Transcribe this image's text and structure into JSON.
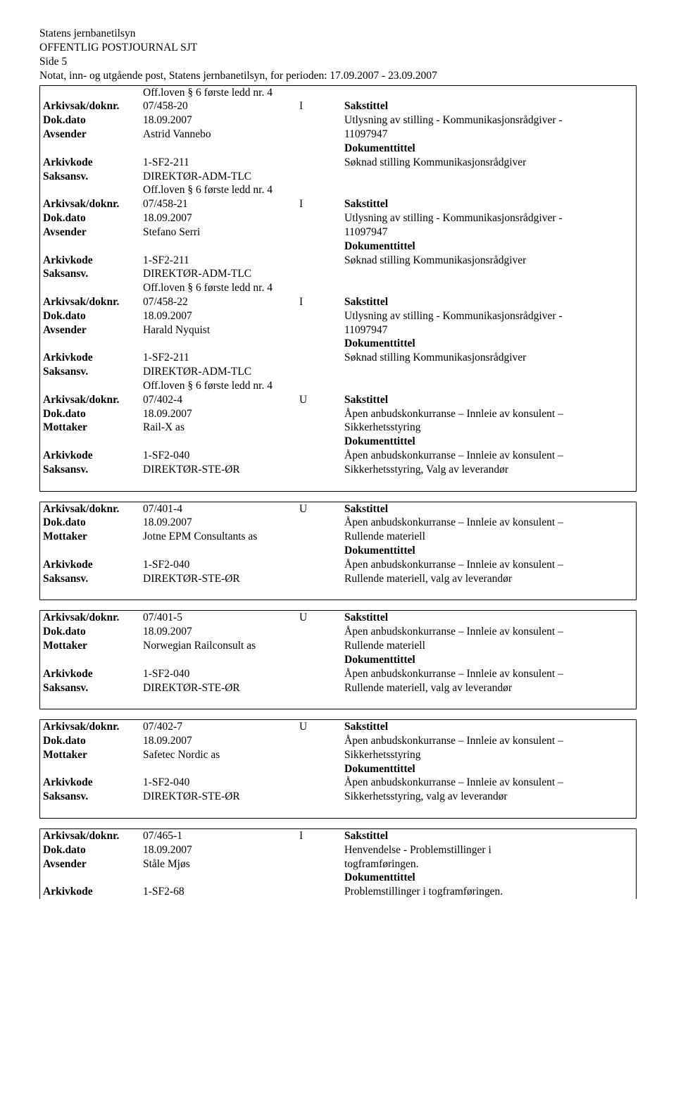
{
  "header": {
    "org": "Statens jernbanetilsyn",
    "title": "OFFENTLIG POSTJOURNAL SJT",
    "page": "Side 5",
    "subtitle": "Notat, inn- og utgående post, Statens jernbanetilsyn, for perioden: 17.09.2007 - 23.09.2007"
  },
  "labels": {
    "arkivsak": "Arkivsak/doknr.",
    "dokdato": "Dok.dato",
    "avsender": "Avsender",
    "mottaker": "Mottaker",
    "arkivkode": "Arkivkode",
    "saksansv": "Saksansv.",
    "sakstittel": "Sakstittel",
    "dokumenttittel": "Dokumenttittel"
  },
  "pre_off": "Off.loven § 6 første ledd nr. 4",
  "entries": [
    {
      "arkivsak": "07/458-20",
      "io": "I",
      "dokdato": "18.09.2007",
      "party_label": "Avsender",
      "party": "Astrid Vannebo",
      "arkivkode": "1-SF2-211",
      "saksansv": "DIREKTØR-ADM-TLC",
      "off": "Off.loven § 6 første ledd nr. 4",
      "sakstittel": [
        "Utlysning av stilling - Kommunikasjonsrådgiver -",
        "11097947"
      ],
      "doktittel": [
        "Søknad stilling Kommunikasjonsrådgiver"
      ]
    },
    {
      "arkivsak": "07/458-21",
      "io": "I",
      "dokdato": "18.09.2007",
      "party_label": "Avsender",
      "party": "Stefano Serri",
      "arkivkode": "1-SF2-211",
      "saksansv": "DIREKTØR-ADM-TLC",
      "off": "Off.loven § 6 første ledd nr. 4",
      "sakstittel": [
        "Utlysning av stilling - Kommunikasjonsrådgiver -",
        "11097947"
      ],
      "doktittel": [
        "Søknad stilling Kommunikasjonsrådgiver"
      ]
    },
    {
      "arkivsak": "07/458-22",
      "io": "I",
      "dokdato": "18.09.2007",
      "party_label": "Avsender",
      "party": "Harald Nyquist",
      "arkivkode": "1-SF2-211",
      "saksansv": "DIREKTØR-ADM-TLC",
      "off": "Off.loven § 6 første ledd nr. 4",
      "sakstittel": [
        "Utlysning av stilling - Kommunikasjonsrådgiver -",
        "11097947"
      ],
      "doktittel": [
        "Søknad stilling Kommunikasjonsrådgiver"
      ]
    },
    {
      "arkivsak": "07/402-4",
      "io": "U",
      "dokdato": "18.09.2007",
      "party_label": "Mottaker",
      "party": "Rail-X as",
      "arkivkode": "1-SF2-040",
      "saksansv": "DIREKTØR-STE-ØR",
      "sakstittel": [
        "Åpen anbudskonkurranse – Innleie av konsulent –",
        "Sikkerhetsstyring"
      ],
      "doktittel": [
        "Åpen anbudskonkurranse – Innleie av konsulent –",
        "Sikkerhetsstyring, Valg av leverandør"
      ]
    },
    {
      "arkivsak": "07/401-4",
      "io": "U",
      "dokdato": "18.09.2007",
      "party_label": "Mottaker",
      "party": "Jotne EPM Consultants as",
      "arkivkode": "1-SF2-040",
      "saksansv": "DIREKTØR-STE-ØR",
      "sakstittel": [
        "Åpen anbudskonkurranse – Innleie av konsulent –",
        "Rullende materiell"
      ],
      "doktittel": [
        "Åpen anbudskonkurranse – Innleie av konsulent –",
        "Rullende materiell, valg av leverandør"
      ]
    },
    {
      "arkivsak": "07/401-5",
      "io": "U",
      "dokdato": "18.09.2007",
      "party_label": "Mottaker",
      "party": "Norwegian Railconsult as",
      "arkivkode": "1-SF2-040",
      "saksansv": "DIREKTØR-STE-ØR",
      "sakstittel": [
        "Åpen anbudskonkurranse – Innleie av konsulent –",
        "Rullende materiell"
      ],
      "doktittel": [
        "Åpen anbudskonkurranse – Innleie av konsulent –",
        "Rullende materiell, valg av leverandør"
      ]
    },
    {
      "arkivsak": "07/402-7",
      "io": "U",
      "dokdato": "18.09.2007",
      "party_label": "Mottaker",
      "party": "Safetec Nordic as",
      "arkivkode": "1-SF2-040",
      "saksansv": "DIREKTØR-STE-ØR",
      "sakstittel": [
        "Åpen anbudskonkurranse – Innleie av konsulent –",
        "Sikkerhetsstyring"
      ],
      "doktittel": [
        "Åpen anbudskonkurranse – Innleie av konsulent –",
        "Sikkerhetsstyring, valg av leverandør"
      ]
    },
    {
      "arkivsak": "07/465-1",
      "io": "I",
      "dokdato": "18.09.2007",
      "party_label": "Avsender",
      "party": "Ståle Mjøs",
      "arkivkode": "1-SF2-68",
      "sakstittel": [
        "Henvendelse - Problemstillinger i",
        "togframføringen."
      ],
      "doktittel": [
        "Problemstillinger i togframføringen."
      ],
      "partial": true
    }
  ]
}
